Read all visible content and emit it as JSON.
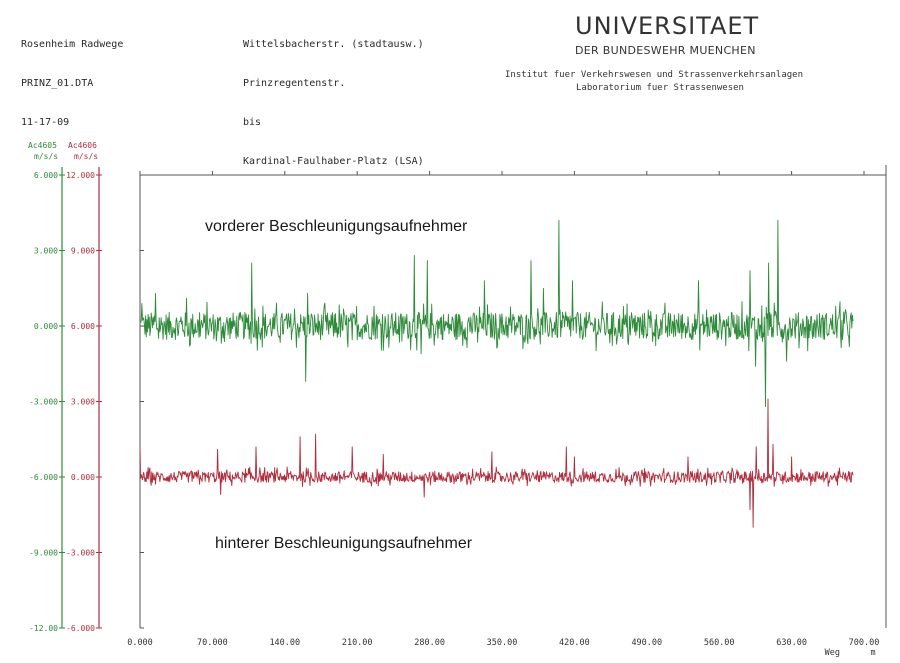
{
  "header": {
    "left": [
      "Rosenheim Radwege",
      "PRINZ_01.DTA",
      "11-17-09"
    ],
    "middle": [
      "Wittelsbacherstr. (stadtausw.)",
      "Prinzregentenstr.",
      "bis",
      "Kardinal-Faulhaber-Platz (LSA)"
    ],
    "university": "UNIVERSITAET",
    "university_sub": "DER BUNDESWEHR MUENCHEN",
    "institute": "Institut fuer Verkehrswesen und Strassenverkehrsanlagen",
    "laboratory": "Laboratorium fuer Strassenwesen"
  },
  "colors": {
    "green": "#2e8b3a",
    "red": "#b22c3c",
    "axis": "#555555"
  },
  "chart_data": {
    "type": "line",
    "xlabel": "Weg",
    "xunit": "m",
    "xlim": [
      0,
      700
    ],
    "x_ticks": [
      "0.000",
      "70.000",
      "140.00",
      "210.00",
      "280.00",
      "350.00",
      "420.00",
      "490.00",
      "560.00",
      "630.00",
      "700.00"
    ],
    "axes": [
      {
        "name": "Ac4605",
        "unit": "m/s/s",
        "color": "#2e8b3a",
        "ylim": [
          -12,
          6
        ],
        "ticks": [
          "6.000",
          "3.000",
          "0.000",
          "-3.000",
          "-6.000",
          "-9.000",
          "-12.00"
        ]
      },
      {
        "name": "Ac4606",
        "unit": "m/s/s",
        "color": "#b22c3c",
        "ylim": [
          -6,
          12
        ],
        "ticks": [
          "12.000",
          "9.000",
          "6.000",
          "3.000",
          "0.000",
          "-3.000",
          "-6.000"
        ]
      }
    ],
    "series": [
      {
        "name": "vorderer Beschleunigungsaufnehmer",
        "axis": 0,
        "baseline": 0.0,
        "noise": 0.55,
        "spikes": [
          [
            2,
            0.9
          ],
          [
            15,
            1.3
          ],
          [
            45,
            1.1
          ],
          [
            108,
            2.5
          ],
          [
            160,
            -2.2
          ],
          [
            162,
            1.3
          ],
          [
            265,
            2.8
          ],
          [
            272,
            -1.1
          ],
          [
            278,
            2.6
          ],
          [
            333,
            1.8
          ],
          [
            378,
            2.6
          ],
          [
            390,
            1.5
          ],
          [
            405,
            4.2
          ],
          [
            418,
            1.8
          ],
          [
            540,
            1.8
          ],
          [
            590,
            2.2
          ],
          [
            595,
            -1.6
          ],
          [
            605,
            -3.2
          ],
          [
            608,
            2.5
          ],
          [
            617,
            4.2
          ],
          [
            625,
            -1.4
          ],
          [
            690,
            1.2
          ]
        ]
      },
      {
        "name": "hinterer Beschleunigungsaufnehmer",
        "axis": 1,
        "baseline": 0.0,
        "noise": 0.22,
        "spikes": [
          [
            0,
            1.2
          ],
          [
            75,
            1.1
          ],
          [
            78,
            -0.7
          ],
          [
            112,
            1.2
          ],
          [
            155,
            1.6
          ],
          [
            170,
            1.7
          ],
          [
            205,
            1.2
          ],
          [
            235,
            0.9
          ],
          [
            275,
            -0.8
          ],
          [
            340,
            1.0
          ],
          [
            412,
            1.2
          ],
          [
            420,
            0.8
          ],
          [
            530,
            0.8
          ],
          [
            590,
            -1.3
          ],
          [
            593,
            -2.0
          ],
          [
            596,
            1.2
          ],
          [
            607,
            3.1
          ],
          [
            612,
            1.3
          ],
          [
            630,
            0.8
          ],
          [
            690,
            -0.8
          ]
        ]
      }
    ]
  }
}
